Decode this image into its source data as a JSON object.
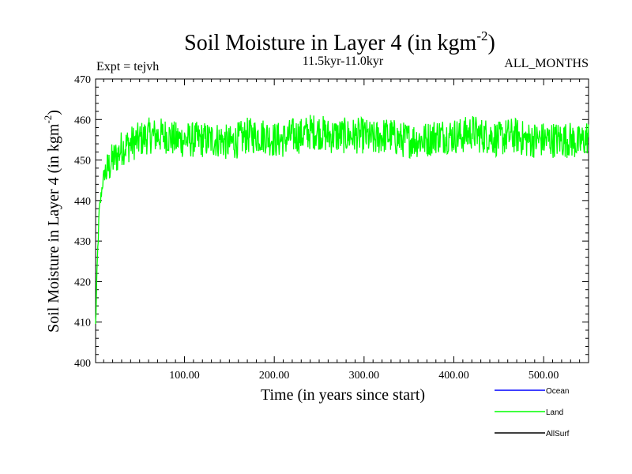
{
  "chart_data": {
    "type": "line",
    "title": "Soil Moisture in Layer 4 (in kgm",
    "title_superscript": "-2",
    "title_close": ")",
    "experiment_label": "Expt = tejvh",
    "period_label": "11.5kyr-11.0kyr",
    "months_label": "ALL_MONTHS",
    "xlabel": "Time (in years since start)",
    "ylabel": "Soil Moisture in Layer 4 (in kgm",
    "ylabel_superscript": "-2",
    "ylabel_close": ")",
    "xlim": [
      1,
      550
    ],
    "ylim": [
      400,
      470
    ],
    "x_ticks": [
      100,
      200,
      300,
      400,
      500
    ],
    "x_tick_labels": [
      "100.00",
      "200.00",
      "300.00",
      "400.00",
      "500.00"
    ],
    "y_ticks": [
      400,
      410,
      420,
      430,
      440,
      450,
      460,
      470
    ],
    "y_tick_labels": [
      "400",
      "410",
      "420",
      "430",
      "440",
      "450",
      "460",
      "470"
    ],
    "legend": [
      {
        "name": "Ocean",
        "color": "#0000ff"
      },
      {
        "name": "Land",
        "color": "#00ff00"
      },
      {
        "name": "AllSurf",
        "color": "#000000"
      }
    ],
    "series": [
      {
        "name": "Land",
        "color": "#00ff00",
        "x": [
          1,
          3,
          5,
          8,
          10,
          15,
          20,
          25,
          30,
          40,
          50,
          60,
          70,
          80,
          90,
          100,
          110,
          120,
          130,
          140,
          150,
          160,
          170,
          180,
          190,
          200,
          210,
          220,
          230,
          240,
          250,
          260,
          270,
          280,
          290,
          300,
          310,
          320,
          330,
          340,
          350,
          360,
          370,
          380,
          390,
          400,
          410,
          420,
          430,
          440,
          450,
          460,
          470,
          480,
          490,
          500,
          510,
          520,
          530,
          540,
          550
        ],
        "y": [
          409,
          425,
          437,
          443,
          446,
          448,
          450,
          451,
          453,
          454,
          455,
          456,
          456,
          456,
          455,
          455,
          455,
          455,
          455,
          455,
          454,
          455,
          456,
          456,
          456,
          455,
          455,
          456,
          456,
          457,
          457,
          456,
          456,
          456,
          456,
          456,
          455,
          456,
          456,
          455,
          455,
          455,
          455,
          456,
          456,
          456,
          456,
          457,
          456,
          456,
          455,
          456,
          456,
          455,
          455,
          455,
          455,
          455,
          455,
          454,
          456
        ],
        "noise_amplitude": 4.5
      }
    ]
  }
}
